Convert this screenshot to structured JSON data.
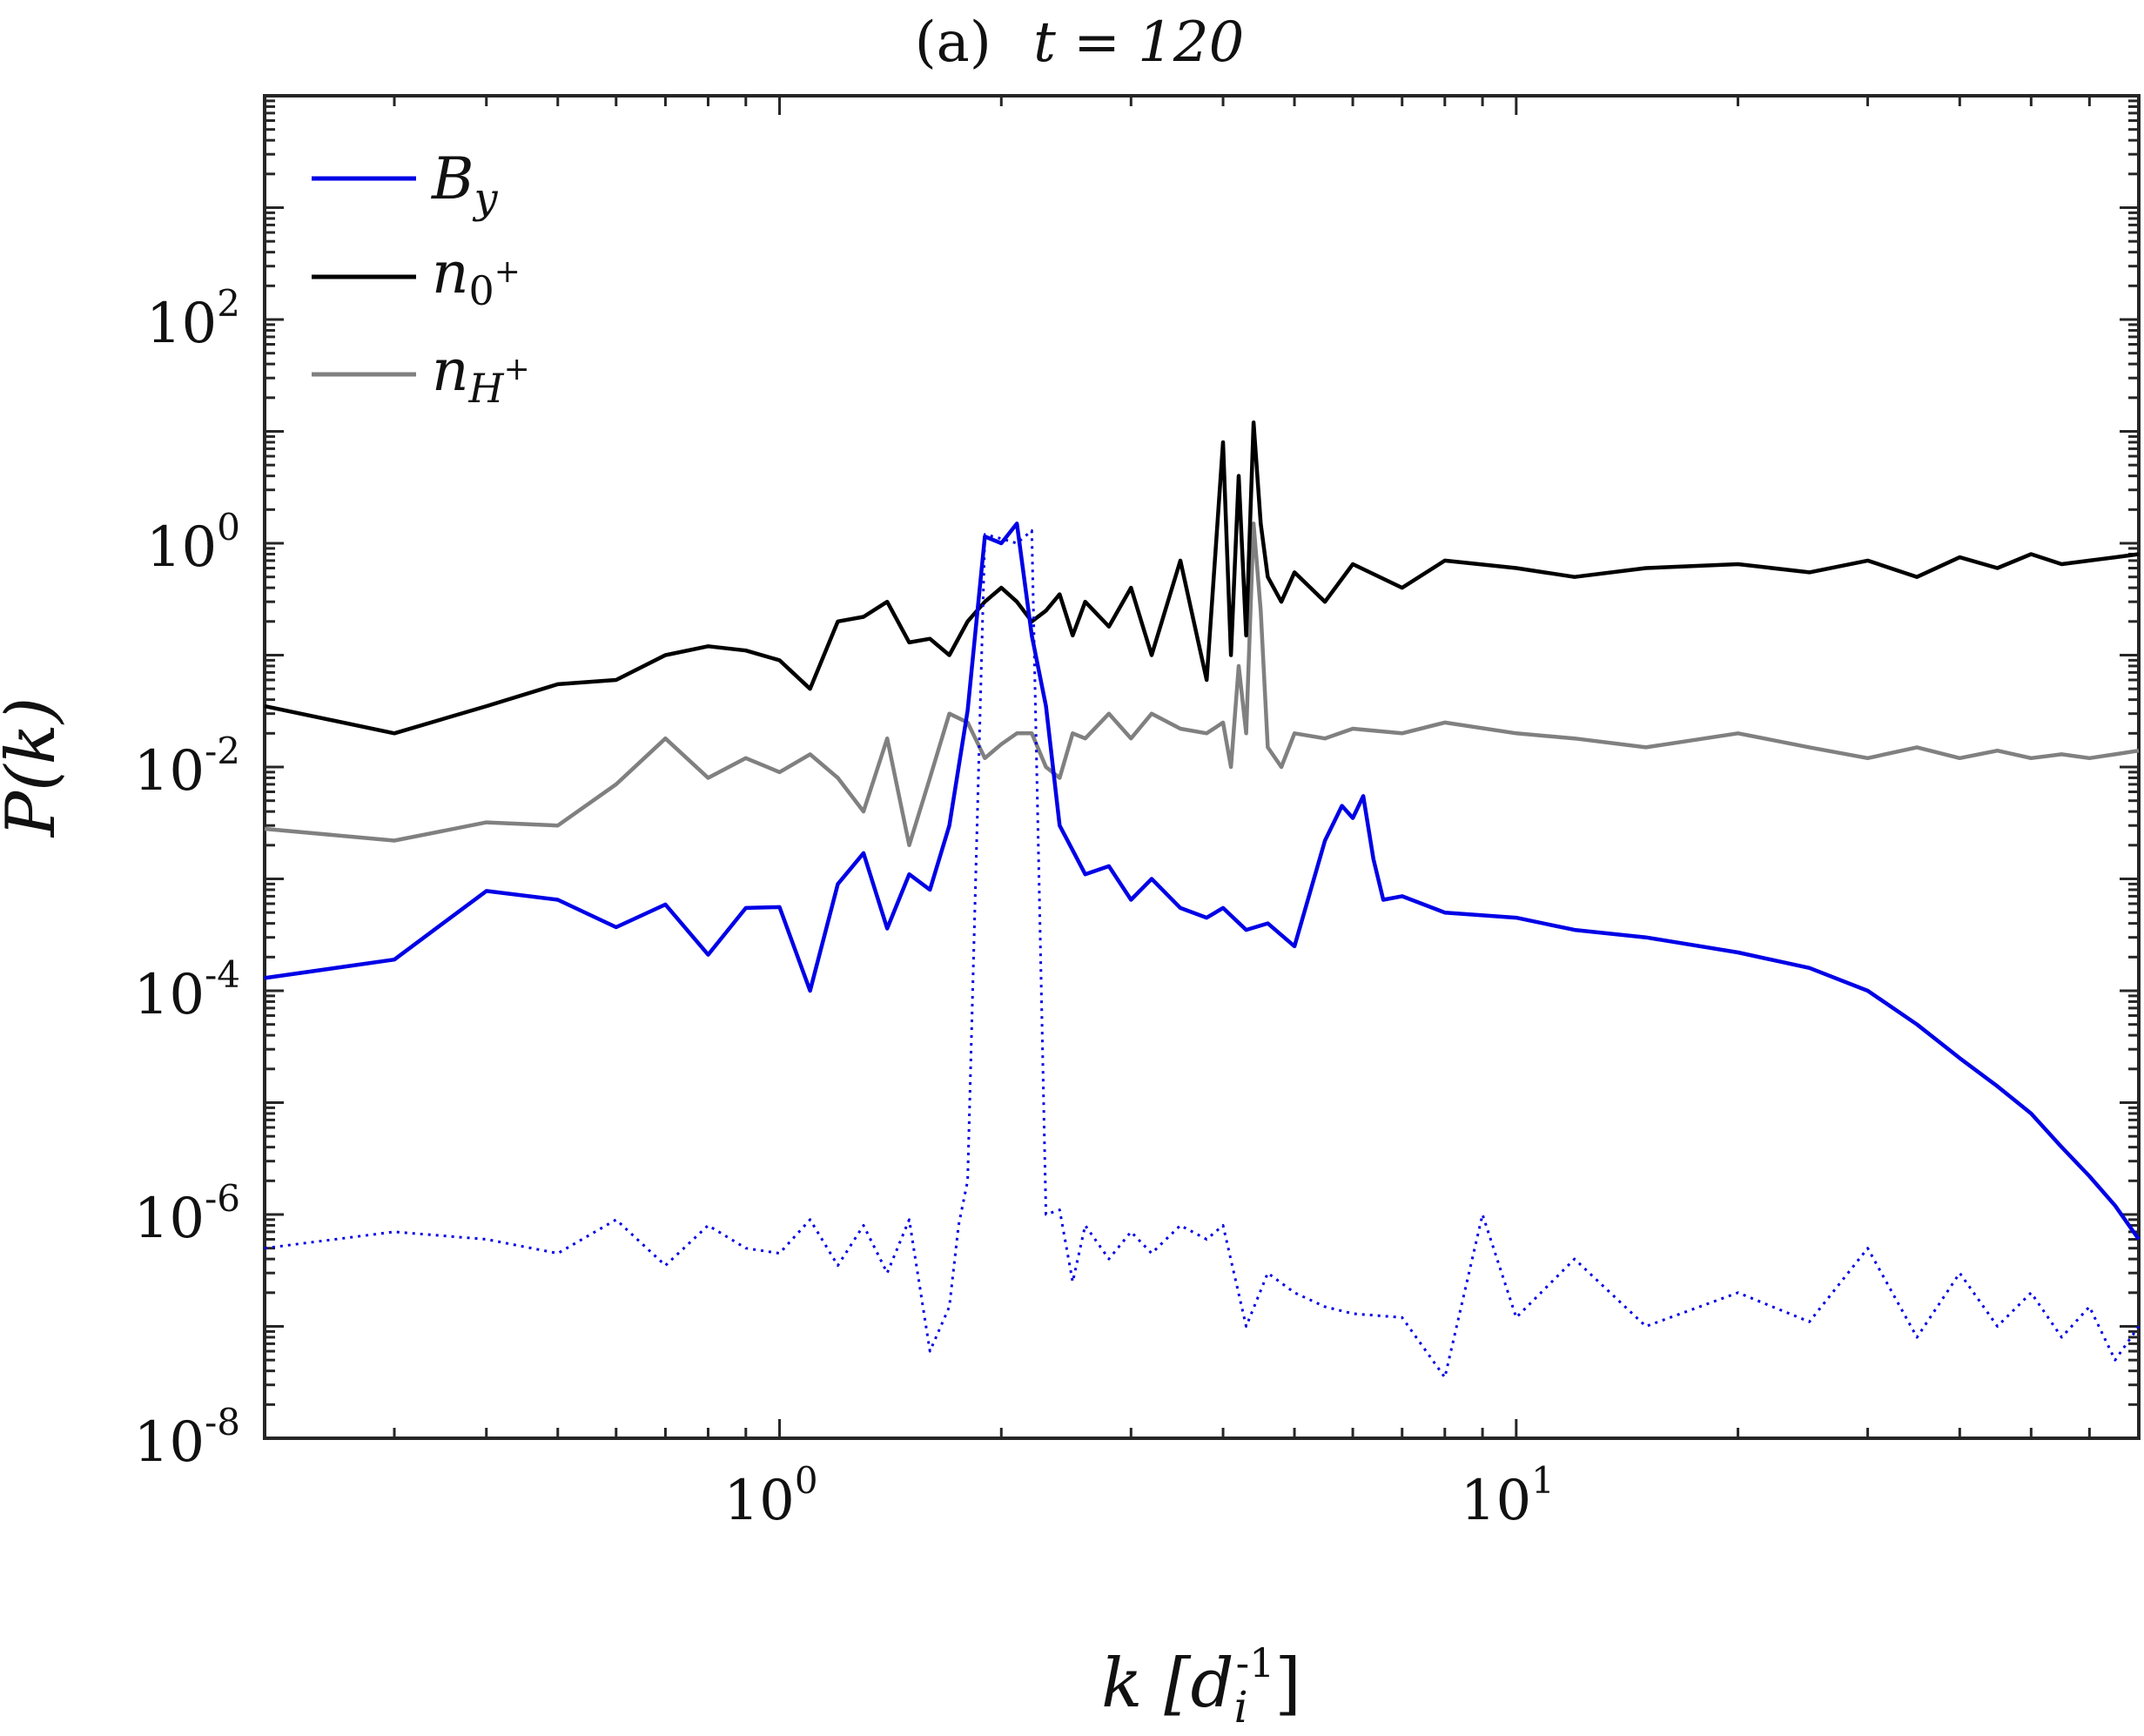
{
  "chart_data": {
    "type": "line",
    "title_prefix": "(a)",
    "title_math": "t = 120",
    "xlabel": "k [d_i^-1]",
    "xlabel_main": "k [d",
    "xlabel_sub": "i",
    "xlabel_sup": "-1",
    "xlabel_close": "]",
    "ylabel": "P(k)",
    "xscale": "log",
    "yscale": "log",
    "xlim": [
      0.2,
      70
    ],
    "ylim": [
      1e-08,
      10000
    ],
    "x_ticks": [
      {
        "value": 1,
        "base": "10",
        "exp": "0"
      },
      {
        "value": 10,
        "base": "10",
        "exp": "1"
      }
    ],
    "y_ticks": [
      {
        "value": 1e-08,
        "base": "10",
        "exp": "-8"
      },
      {
        "value": 1e-06,
        "base": "10",
        "exp": "-6"
      },
      {
        "value": 0.0001,
        "base": "10",
        "exp": "-4"
      },
      {
        "value": 0.01,
        "base": "10",
        "exp": "-2"
      },
      {
        "value": 1,
        "base": "10",
        "exp": "0"
      },
      {
        "value": 100,
        "base": "10",
        "exp": "2"
      }
    ],
    "legend_position": "top-left",
    "legend": [
      {
        "series": "By",
        "main": "B",
        "sub": "y",
        "supsub": ""
      },
      {
        "series": "n0",
        "main": "n",
        "sub": "0",
        "supsub": "+"
      },
      {
        "series": "nH",
        "main": "n",
        "sub": "H",
        "supsub": "+"
      }
    ],
    "series": [
      {
        "name": "B_y",
        "id": "By",
        "color": "#0000e6",
        "style": "solid",
        "in_legend": true,
        "x": [
          0.2,
          0.3,
          0.4,
          0.5,
          0.6,
          0.7,
          0.8,
          0.9,
          1.0,
          1.1,
          1.2,
          1.3,
          1.4,
          1.5,
          1.6,
          1.7,
          1.8,
          1.9,
          2.0,
          2.1,
          2.2,
          2.3,
          2.4,
          2.5,
          2.6,
          2.8,
          3.0,
          3.2,
          3.5,
          3.8,
          4.0,
          4.3,
          4.6,
          5.0,
          5.5,
          5.8,
          6.0,
          6.2,
          6.4,
          6.6,
          7.0,
          8.0,
          10.0,
          12.0,
          15.0,
          20.0,
          25.0,
          30.0,
          35.0,
          40.0,
          45.0,
          50.0,
          55.0,
          60.0,
          65.0,
          70.0
        ],
        "y": [
          0.00013,
          0.00019,
          0.00078,
          0.00065,
          0.00037,
          0.00059,
          0.00021,
          0.00055,
          0.00056,
          0.0001,
          0.0009,
          0.0017,
          0.00036,
          0.0011,
          0.0008,
          0.003,
          0.032,
          1.15,
          1.0,
          1.5,
          0.15,
          0.035,
          0.003,
          0.0018,
          0.0011,
          0.0013,
          0.00065,
          0.001,
          0.00055,
          0.00045,
          0.00055,
          0.00035,
          0.0004,
          0.00025,
          0.0022,
          0.0045,
          0.0035,
          0.0055,
          0.0015,
          0.00065,
          0.0007,
          0.0005,
          0.00045,
          0.00035,
          0.0003,
          0.00022,
          0.00016,
          0.0001,
          5e-05,
          2.5e-05,
          1.4e-05,
          8e-06,
          4e-06,
          2.2e-06,
          1.2e-06,
          6e-07
        ]
      },
      {
        "name": "B_y (dotted)",
        "id": "By_dotted",
        "color": "#0000e6",
        "style": "dotted",
        "in_legend": false,
        "x": [
          0.2,
          0.3,
          0.4,
          0.5,
          0.6,
          0.7,
          0.8,
          0.9,
          1.0,
          1.1,
          1.2,
          1.3,
          1.4,
          1.5,
          1.6,
          1.7,
          1.75,
          1.8,
          1.9,
          2.0,
          2.1,
          2.2,
          2.3,
          2.4,
          2.5,
          2.6,
          2.8,
          3.0,
          3.2,
          3.5,
          3.8,
          4.0,
          4.3,
          4.6,
          5.0,
          5.5,
          6.0,
          7.0,
          8.0,
          9.0,
          10.0,
          12.0,
          15.0,
          20.0,
          25.0,
          30.0,
          35.0,
          40.0,
          45.0,
          50.0,
          55.0,
          60.0,
          65.0,
          70.0
        ],
        "y": [
          5e-07,
          7e-07,
          6e-07,
          4.5e-07,
          9e-07,
          3.5e-07,
          8e-07,
          5e-07,
          4.5e-07,
          9e-07,
          3.5e-07,
          8e-07,
          3e-07,
          9e-07,
          6e-08,
          1.5e-07,
          8e-07,
          2e-06,
          1.2,
          1.1,
          1.0,
          1.3,
          1e-06,
          1.1e-06,
          2.5e-07,
          8e-07,
          4e-07,
          7e-07,
          4.5e-07,
          8e-07,
          6e-07,
          8e-07,
          1e-07,
          3e-07,
          2e-07,
          1.5e-07,
          1.3e-07,
          1.2e-07,
          3.5e-08,
          1e-06,
          1.2e-07,
          4e-07,
          1e-07,
          2e-07,
          1.1e-07,
          5e-07,
          8e-08,
          3e-07,
          1e-07,
          2e-07,
          8e-08,
          1.5e-07,
          5e-08,
          1e-07
        ]
      },
      {
        "name": "n_0+",
        "id": "n0",
        "color": "#000000",
        "style": "solid",
        "in_legend": true,
        "x": [
          0.2,
          0.3,
          0.4,
          0.5,
          0.6,
          0.7,
          0.8,
          0.9,
          1.0,
          1.1,
          1.2,
          1.3,
          1.4,
          1.5,
          1.6,
          1.7,
          1.8,
          1.9,
          2.0,
          2.1,
          2.2,
          2.3,
          2.4,
          2.5,
          2.6,
          2.8,
          3.0,
          3.2,
          3.5,
          3.8,
          4.0,
          4.1,
          4.2,
          4.3,
          4.4,
          4.5,
          4.6,
          4.8,
          5.0,
          5.5,
          6.0,
          7.0,
          8.0,
          10.0,
          12.0,
          15.0,
          20.0,
          25.0,
          30.0,
          35.0,
          40.0,
          45.0,
          50.0,
          55.0,
          60.0,
          65.0,
          70.0
        ],
        "y": [
          0.035,
          0.02,
          0.035,
          0.055,
          0.06,
          0.1,
          0.12,
          0.11,
          0.09,
          0.05,
          0.2,
          0.22,
          0.3,
          0.13,
          0.14,
          0.1,
          0.2,
          0.3,
          0.4,
          0.3,
          0.2,
          0.25,
          0.35,
          0.15,
          0.3,
          0.18,
          0.4,
          0.1,
          0.7,
          0.06,
          8,
          0.1,
          4,
          0.15,
          12,
          1.5,
          0.5,
          0.3,
          0.55,
          0.3,
          0.65,
          0.4,
          0.7,
          0.6,
          0.5,
          0.6,
          0.65,
          0.55,
          0.7,
          0.5,
          0.75,
          0.6,
          0.8,
          0.65,
          0.7,
          0.75,
          0.8
        ]
      },
      {
        "name": "n_H+",
        "id": "nH",
        "color": "#808080",
        "style": "solid",
        "in_legend": true,
        "x": [
          0.2,
          0.3,
          0.4,
          0.5,
          0.6,
          0.7,
          0.8,
          0.9,
          1.0,
          1.1,
          1.2,
          1.3,
          1.4,
          1.5,
          1.6,
          1.7,
          1.8,
          1.9,
          2.0,
          2.1,
          2.2,
          2.3,
          2.4,
          2.5,
          2.6,
          2.8,
          3.0,
          3.2,
          3.5,
          3.8,
          4.0,
          4.1,
          4.2,
          4.3,
          4.4,
          4.5,
          4.6,
          4.8,
          5.0,
          5.5,
          6.0,
          7.0,
          8.0,
          10.0,
          12.0,
          15.0,
          20.0,
          25.0,
          30.0,
          35.0,
          40.0,
          45.0,
          50.0,
          55.0,
          60.0,
          65.0,
          70.0
        ],
        "y": [
          0.0028,
          0.0022,
          0.0032,
          0.003,
          0.007,
          0.018,
          0.008,
          0.012,
          0.009,
          0.013,
          0.008,
          0.004,
          0.018,
          0.002,
          0.008,
          0.03,
          0.025,
          0.012,
          0.016,
          0.02,
          0.02,
          0.01,
          0.008,
          0.02,
          0.018,
          0.03,
          0.018,
          0.03,
          0.022,
          0.02,
          0.025,
          0.01,
          0.08,
          0.02,
          1.5,
          0.25,
          0.015,
          0.01,
          0.02,
          0.018,
          0.022,
          0.02,
          0.025,
          0.02,
          0.018,
          0.015,
          0.02,
          0.015,
          0.012,
          0.015,
          0.012,
          0.014,
          0.012,
          0.013,
          0.012,
          0.013,
          0.014
        ]
      }
    ]
  }
}
